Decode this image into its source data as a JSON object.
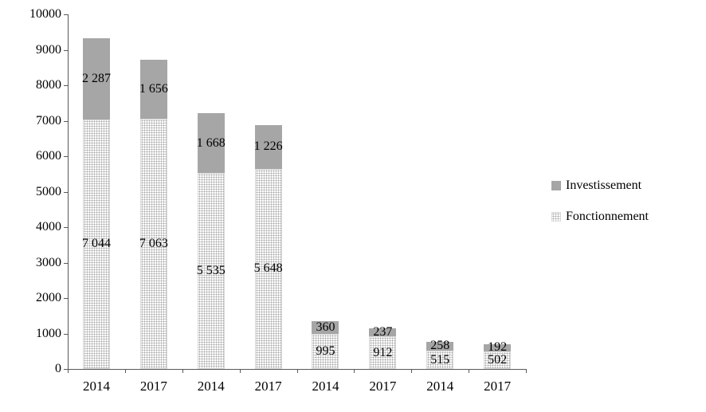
{
  "chart_data": {
    "type": "bar",
    "stacked": true,
    "title": "",
    "xlabel": "",
    "ylabel": "",
    "categories": [
      "2014",
      "2017",
      "2014",
      "2017",
      "2014",
      "2017",
      "2014",
      "2017"
    ],
    "series": [
      {
        "name": "Fonctionnement",
        "pattern": "dotted",
        "color": "#f2f2f2",
        "values": [
          7044,
          7063,
          5535,
          5648,
          995,
          912,
          515,
          502
        ],
        "labels": [
          "7 044",
          "7 063",
          "5 535",
          "5 648",
          "995",
          "912",
          "515",
          "502"
        ]
      },
      {
        "name": "Investissement",
        "pattern": "solid",
        "color": "#a6a6a6",
        "values": [
          2287,
          1656,
          1668,
          1226,
          360,
          237,
          258,
          192
        ],
        "labels": [
          "2 287",
          "1 656",
          "1 668",
          "1 226",
          "360",
          "237",
          "258",
          "192"
        ]
      }
    ],
    "ylim": [
      0,
      10000
    ],
    "ytick_step": 1000,
    "grid": false,
    "legend_position": "right",
    "legend": [
      "Investissement",
      "Fonctionnement"
    ]
  }
}
